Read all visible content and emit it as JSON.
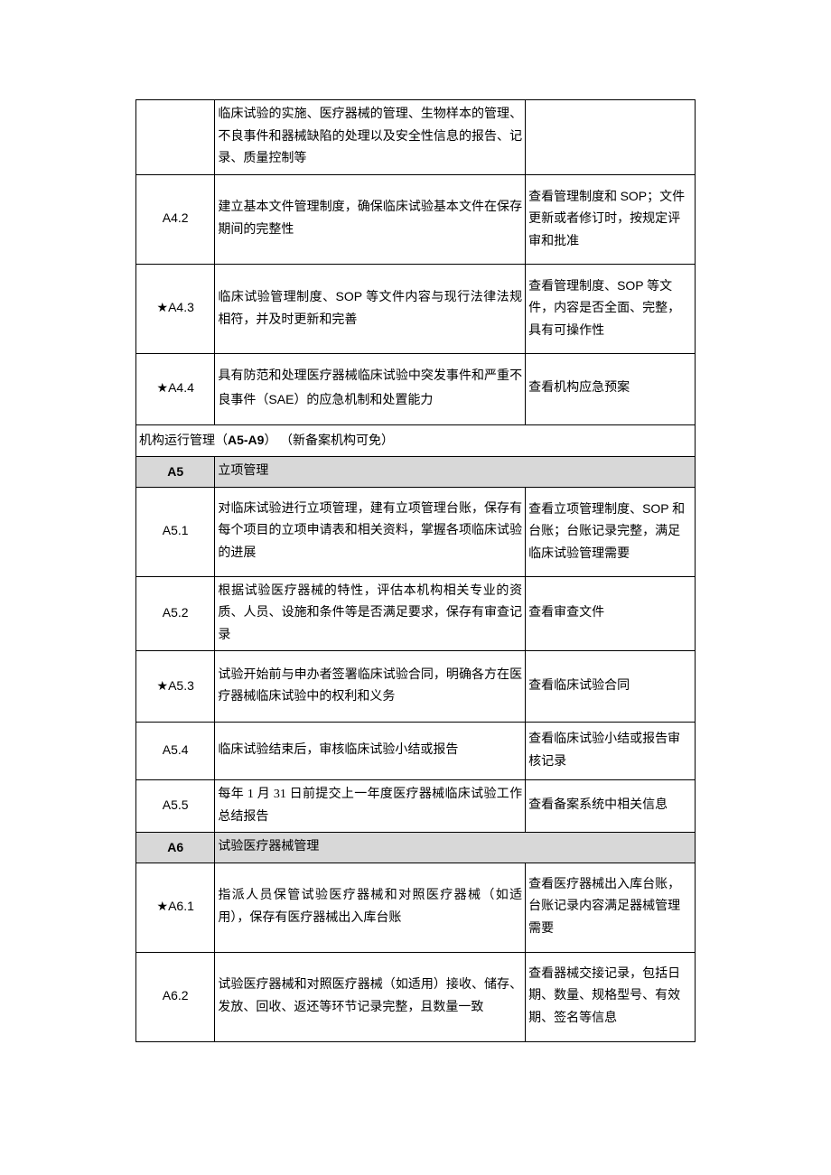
{
  "rows": [
    {
      "type": "data",
      "code": "",
      "desc": "临床试验的实施、医疗器械的管理、生物样本的管理、不良事件和器械缺陷的处理以及安全性信息的报告、记录、质量控制等",
      "check": "",
      "h": "tall"
    },
    {
      "type": "data",
      "code": "A4.2",
      "desc": "建立基本文件管理制度，确保临床试验基本文件在保存期间的完整性",
      "check": "查看管理制度和 SOP；文件更新或者修订时，按规定评审和批准",
      "h": "taller"
    },
    {
      "type": "data",
      "code": "★A4.3",
      "desc": "临床试验管理制度、SOP 等文件内容与现行法律法规相符，并及时更新和完善",
      "check": "查看管理制度、SOP 等文件，内容是否全面、完整，具有可操作性",
      "h": "taller"
    },
    {
      "type": "data",
      "code": "★A4.4",
      "desc": "具有防范和处理医疗器械临床试验中突发事件和严重不良事件（SAE）的应急机制和处置能力",
      "check": "查看机构应急预案",
      "h": "tall"
    },
    {
      "type": "group",
      "text_prefix": "机构运行管理（",
      "text_bold": "A5-A9",
      "text_suffix": "）  （新备案机构可免）"
    },
    {
      "type": "section",
      "code": "A5",
      "title": "立项管理"
    },
    {
      "type": "data",
      "code": "A5.1",
      "desc": "对临床试验进行立项管理，建有立项管理台账，保存有每个项目的立项申请表和相关资料，掌握各项临床试验的进展",
      "check": "查看立项管理制度、SOP 和台账；台账记录完整，满足临床试验管理需要",
      "h": "taller"
    },
    {
      "type": "data",
      "code": "A5.2",
      "desc": "根据试验医疗器械的特性，评估本机构相关专业的资质、人员、设施和条件等是否满足要求，保存有审查记录",
      "check": "查看审查文件",
      "h": "tall"
    },
    {
      "type": "data",
      "code": "★A5.3",
      "desc": "试验开始前与申办者签署临床试验合同，明确各方在医疗器械临床试验中的权利和义务",
      "check": "查看临床试验合同",
      "h": "tall"
    },
    {
      "type": "data",
      "code": "A5.4",
      "desc": "临床试验结束后，审核临床试验小结或报告",
      "check": "查看临床试验小结或报告审核记录",
      "h": "medium"
    },
    {
      "type": "data",
      "code": "A5.5",
      "desc": "每年 1 月 31 日前提交上一年度医疗器械临床试验工作总结报告",
      "check": "查看备案系统中相关信息",
      "h": ""
    },
    {
      "type": "section",
      "code": "A6",
      "title": "试验医疗器械管理"
    },
    {
      "type": "data",
      "code": "★A6.1",
      "desc": "指派人员保管试验医疗器械和对照医疗器械（如适用），保存有医疗器械出入库台账",
      "check": "查看医疗器械出入库台账，台账记录内容满足器械管理需要",
      "h": "taller"
    },
    {
      "type": "data",
      "code": "A6.2",
      "desc": "试验医疗器械和对照医疗器械（如适用）接收、储存、发放、回收、返还等环节记录完整，且数量一致",
      "check": "查看器械交接记录，包括日期、数量、规格型号、有效期、签名等信息",
      "h": "taller"
    }
  ]
}
